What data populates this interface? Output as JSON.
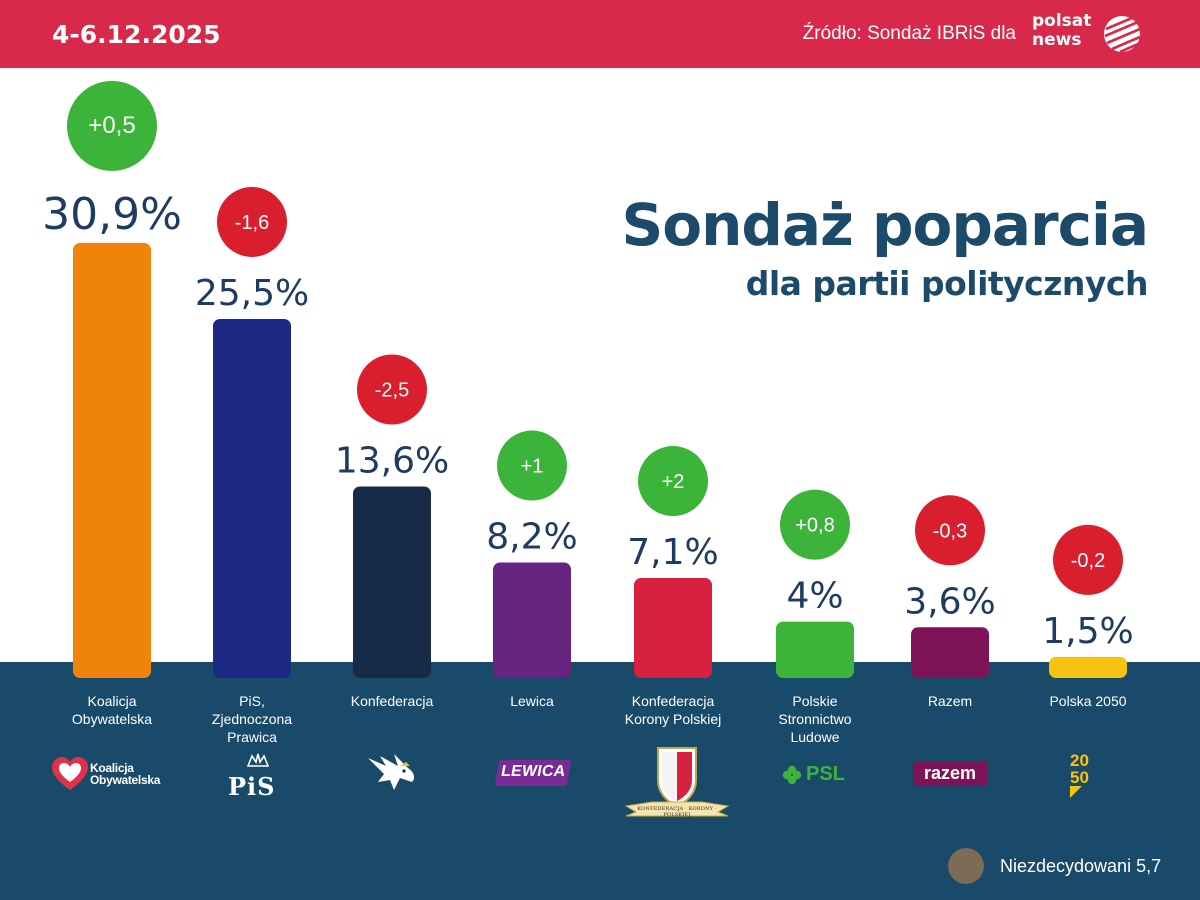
{
  "header": {
    "date": "4-6.12.2025",
    "source": "Źródło: Sondaż IBRiS dla",
    "brand_line1": "polsat",
    "brand_line2": "news"
  },
  "headline": {
    "title": "Sondaż poparcia",
    "subtitle": "dla partii politycznych"
  },
  "undecided": {
    "label": "Niezdecydowani 5,7",
    "color": "#7c6b55"
  },
  "logos": {
    "ko_text_1": "Koalicja",
    "ko_text_2": "Obywatelska",
    "pis_text": "PiS",
    "lewica_text": "LEWICA",
    "kkp_text": "KONFEDERACJA · KORONY · POLSKIEJ",
    "psl_text": "PSL",
    "razem_text": "razem",
    "p2050_text_1": "20",
    "p2050_text_2": "50"
  },
  "chart_data": {
    "type": "bar",
    "title": "Sondaż poparcia",
    "subtitle": "dla partii politycznych",
    "categories": [
      "Koalicja Obywatelska",
      "PiS, Zjednoczona Prawica",
      "Konfederacja",
      "Lewica",
      "Konfederacja Korony Polskiej",
      "Polskie Stronnictwo Ludowe",
      "Razem",
      "Polska 2050"
    ],
    "label_lines": [
      [
        "Koalicja",
        "Obywatelska"
      ],
      [
        "PiS,",
        "Zjednoczona",
        "Prawica"
      ],
      [
        "Konfederacja"
      ],
      [
        "Lewica"
      ],
      [
        "Konfederacja",
        "Korony Polskiej"
      ],
      [
        "Polskie",
        "Stronnictwo",
        "Ludowe"
      ],
      [
        "Razem"
      ],
      [
        "Polska 2050"
      ]
    ],
    "values": [
      30.9,
      25.5,
      13.6,
      8.2,
      7.1,
      4,
      3.6,
      1.5
    ],
    "value_labels": [
      "30,9%",
      "25,5%",
      "13,6%",
      "8,2%",
      "7,1%",
      "4%",
      "3,6%",
      "1,5%"
    ],
    "changes": [
      0.5,
      -1.6,
      -2.5,
      1,
      2,
      0.8,
      -0.3,
      -0.2
    ],
    "change_labels": [
      "+0,5",
      "-1,6",
      "-2,5",
      "+1",
      "+2",
      "+0,8",
      "-0,3",
      "-0,2"
    ],
    "colors": [
      "#f08309",
      "#1c2a85",
      "#172a48",
      "#66237f",
      "#d82140",
      "#3cb43a",
      "#7e1457",
      "#f8c211"
    ],
    "positive_color": "#3cb43a",
    "negative_color": "#d91f2d",
    "value_label_color": "#1f3a63",
    "unit": "%"
  }
}
